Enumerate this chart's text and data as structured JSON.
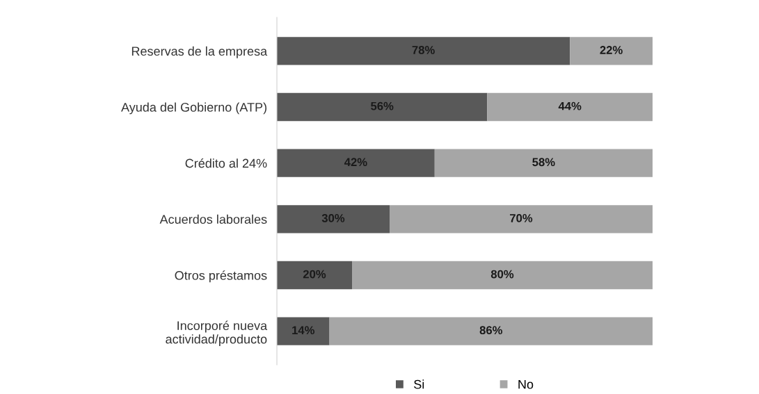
{
  "chart_data": {
    "type": "bar",
    "orientation": "horizontal",
    "stacked": true,
    "legend": "bottom",
    "grid": false,
    "categories": [
      "Reservas de la empresa",
      "Ayuda del Gobierno (ATP)",
      "Crédito al 24%",
      "Acuerdos laborales",
      "Otros préstamos",
      "Incorporé nueva\nactividad/producto"
    ],
    "series": [
      {
        "name": "Si",
        "color": "#595959",
        "values": [
          78,
          56,
          42,
          30,
          20,
          14
        ],
        "value_labels": [
          "78%",
          "56%",
          "42%",
          "30%",
          "20%",
          "14%"
        ]
      },
      {
        "name": "No",
        "color": "#a6a6a6",
        "values": [
          22,
          44,
          58,
          70,
          80,
          86
        ],
        "value_labels": [
          "22%",
          "44%",
          "58%",
          "70%",
          "80%",
          "86%"
        ]
      }
    ]
  }
}
